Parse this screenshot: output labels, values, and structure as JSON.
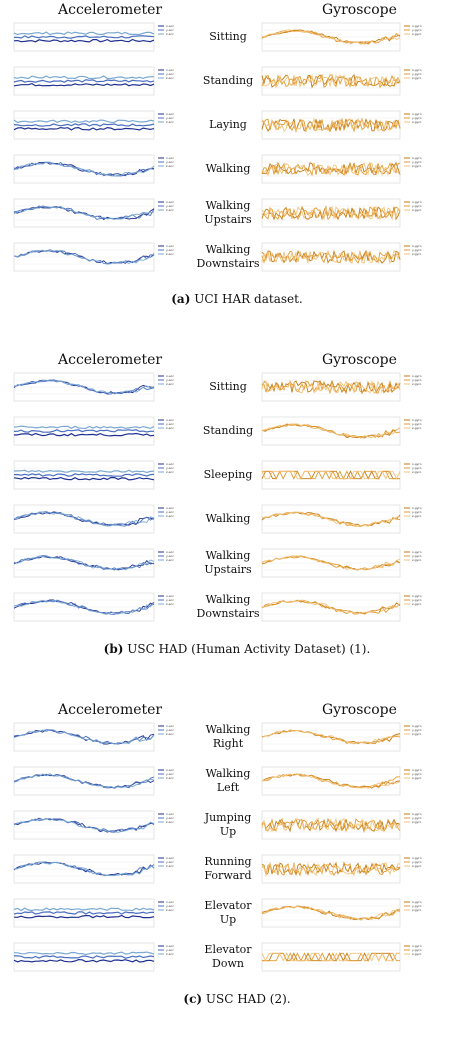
{
  "headers": {
    "left": "Accelerometer",
    "right": "Gyroscope"
  },
  "panels": [
    {
      "id": "a",
      "caption_letter": "(a)",
      "caption_text": " UCI HAR dataset.",
      "activities": [
        {
          "label": "Sitting",
          "acc_legend": [
            "x-acc",
            "y-acc",
            "z-acc"
          ],
          "gyro_legend": [
            "x-gyro",
            "y-gyro",
            "z-gyro"
          ]
        },
        {
          "label": "Standing",
          "acc_legend": [
            "x-acc",
            "y-acc",
            "z-acc"
          ],
          "gyro_legend": [
            "x-gyro",
            "y-gyro",
            "z-gyro"
          ]
        },
        {
          "label": "Laying",
          "acc_legend": [
            "x-acc",
            "y-acc",
            "z-acc"
          ],
          "gyro_legend": [
            "x-gyro",
            "y-gyro",
            "z-gyro"
          ]
        },
        {
          "label": "Walking",
          "acc_legend": [
            "x-acc",
            "y-acc",
            "z-acc"
          ],
          "gyro_legend": [
            "x-gyro",
            "y-gyro",
            "z-gyro"
          ]
        },
        {
          "label": "Walking\nUpstairs",
          "acc_legend": [
            "x-acc",
            "y-acc",
            "z-acc"
          ],
          "gyro_legend": [
            "x-gyro",
            "y-gyro",
            "z-gyro"
          ]
        },
        {
          "label": "Walking\nDownstairs",
          "acc_legend": [
            "x-acc",
            "y-acc",
            "z-acc"
          ],
          "gyro_legend": [
            "x-gyro",
            "y-gyro",
            "z-gyro"
          ]
        }
      ]
    },
    {
      "id": "b",
      "caption_letter": "(b)",
      "caption_text": " USC HAD (Human Activity Dataset) (1).",
      "activities": [
        {
          "label": "Sitting",
          "acc_legend": [
            "x-acc",
            "y-acc",
            "z-acc"
          ],
          "gyro_legend": [
            "x-gyro",
            "y-gyro",
            "z-gyro"
          ]
        },
        {
          "label": "Standing",
          "acc_legend": [
            "x-acc",
            "y-acc",
            "z-acc"
          ],
          "gyro_legend": [
            "x-gyro",
            "y-gyro",
            "z-gyro"
          ]
        },
        {
          "label": "Sleeping",
          "acc_legend": [
            "x-acc",
            "y-acc",
            "z-acc"
          ],
          "gyro_legend": [
            "x-gyro",
            "y-gyro",
            "z-gyro"
          ]
        },
        {
          "label": "Walking",
          "acc_legend": [
            "x-acc",
            "y-acc",
            "z-acc"
          ],
          "gyro_legend": [
            "x-gyro",
            "y-gyro",
            "z-gyro"
          ]
        },
        {
          "label": "Walking\nUpstairs",
          "acc_legend": [
            "x-acc",
            "y-acc",
            "z-acc"
          ],
          "gyro_legend": [
            "x-gyro",
            "y-gyro",
            "z-gyro"
          ]
        },
        {
          "label": "Walking\nDownstairs",
          "acc_legend": [
            "x-acc",
            "y-acc",
            "z-acc"
          ],
          "gyro_legend": [
            "x-gyro",
            "y-gyro",
            "z-gyro"
          ]
        }
      ]
    },
    {
      "id": "c",
      "caption_letter": "(c)",
      "caption_text": " USC HAD (2).",
      "activities": [
        {
          "label": "Walking\nRight",
          "acc_legend": [
            "x-acc",
            "y-acc",
            "z-acc"
          ],
          "gyro_legend": [
            "x-gyro",
            "y-gyro",
            "z-gyro"
          ]
        },
        {
          "label": "Walking\nLeft",
          "acc_legend": [
            "x-acc",
            "y-acc",
            "z-acc"
          ],
          "gyro_legend": [
            "x-gyro",
            "y-gyro",
            "z-gyro"
          ]
        },
        {
          "label": "Jumping\nUp",
          "acc_legend": [
            "x-acc",
            "y-acc",
            "z-acc"
          ],
          "gyro_legend": [
            "x-gyro",
            "y-gyro",
            "z-gyro"
          ]
        },
        {
          "label": "Running\nForward",
          "acc_legend": [
            "x-acc",
            "y-acc",
            "z-acc"
          ],
          "gyro_legend": [
            "x-gyro",
            "y-gyro",
            "z-gyro"
          ]
        },
        {
          "label": "Elevator\nUp",
          "acc_legend": [
            "x-acc",
            "y-acc",
            "z-acc"
          ],
          "gyro_legend": [
            "x-gyro",
            "y-gyro",
            "z-gyro"
          ]
        },
        {
          "label": "Elevator\nDown",
          "acc_legend": [
            "x-acc",
            "y-acc",
            "z-acc"
          ],
          "gyro_legend": [
            "x-gyro",
            "y-gyro",
            "z-gyro"
          ]
        }
      ]
    }
  ],
  "colors": {
    "acc": [
      "#1f2f8f",
      "#4a6fc0",
      "#7aa8d0"
    ],
    "gyro": [
      "#c47a10",
      "#e39a30",
      "#f2c37a"
    ]
  }
}
